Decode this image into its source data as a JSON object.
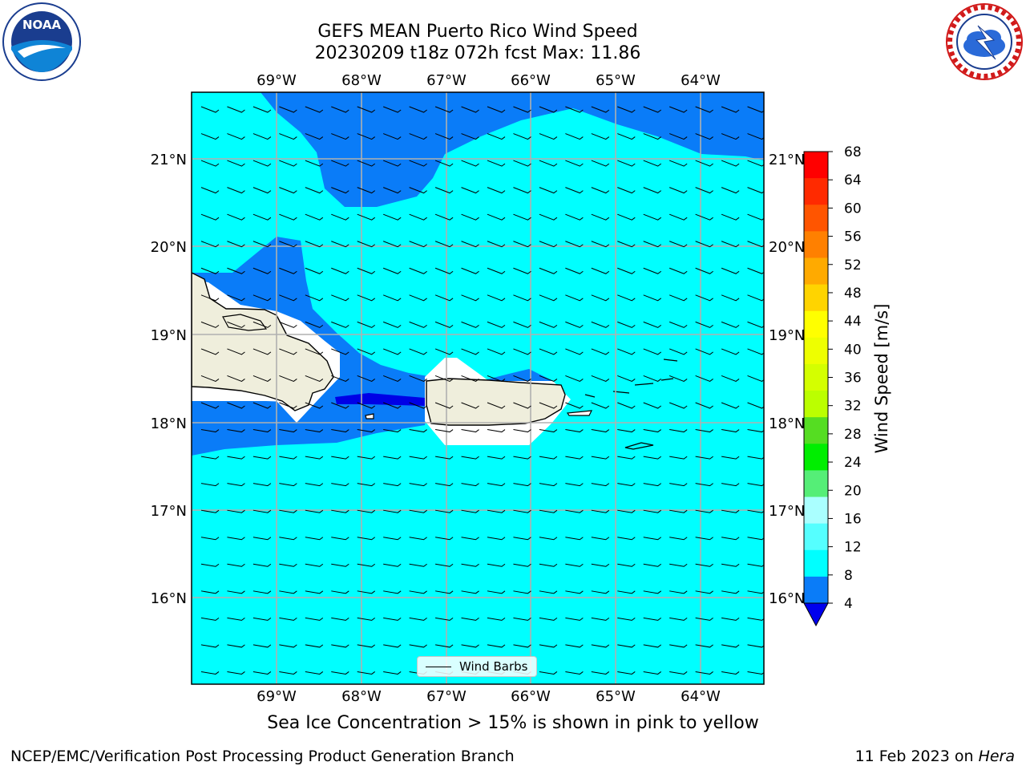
{
  "title": {
    "line1": "GEFS MEAN Puerto Rico Wind Speed",
    "line2": "20230209 t18z 072h fcst   Max: 11.86"
  },
  "map": {
    "lon_labels": [
      "69°W",
      "68°W",
      "67°W",
      "66°W",
      "65°W",
      "64°W"
    ],
    "lat_labels": [
      "21°N",
      "20°N",
      "19°N",
      "18°N",
      "17°N",
      "16°N"
    ],
    "legend_label": "Wind Barbs",
    "fill_colors": {
      "speed_4_8": "#0a7cf8",
      "speed_8_12": "#00ffff",
      "speed_below_4": "#0000e6",
      "land": "#efeedc"
    }
  },
  "colorbar": {
    "label": "Wind Speed [m/s]",
    "ticks": [
      "68",
      "64",
      "60",
      "56",
      "52",
      "48",
      "44",
      "40",
      "36",
      "32",
      "28",
      "24",
      "20",
      "16",
      "12",
      "8",
      "4"
    ],
    "colors": [
      "#ff0000",
      "#ff2a00",
      "#ff5500",
      "#ff8000",
      "#ffaa00",
      "#ffd400",
      "#ffff00",
      "#eeff00",
      "#d4ff00",
      "#bbff00",
      "#55dd22",
      "#00ee00",
      "#55ee77",
      "#aaffff",
      "#55ffff",
      "#00ffff",
      "#0a7cf8"
    ],
    "under_color": "#0000ee"
  },
  "ice_note": "Sea Ice Concentration > 15% is shown in pink to yellow",
  "footer": {
    "left": "NCEP/EMC/Verification Post Processing Product Generation Branch",
    "right_prefix": "11 Feb 2023 on ",
    "right_host": "Hera"
  },
  "logos": {
    "left": "noaa-logo",
    "right": "national-weather-service-logo"
  }
}
